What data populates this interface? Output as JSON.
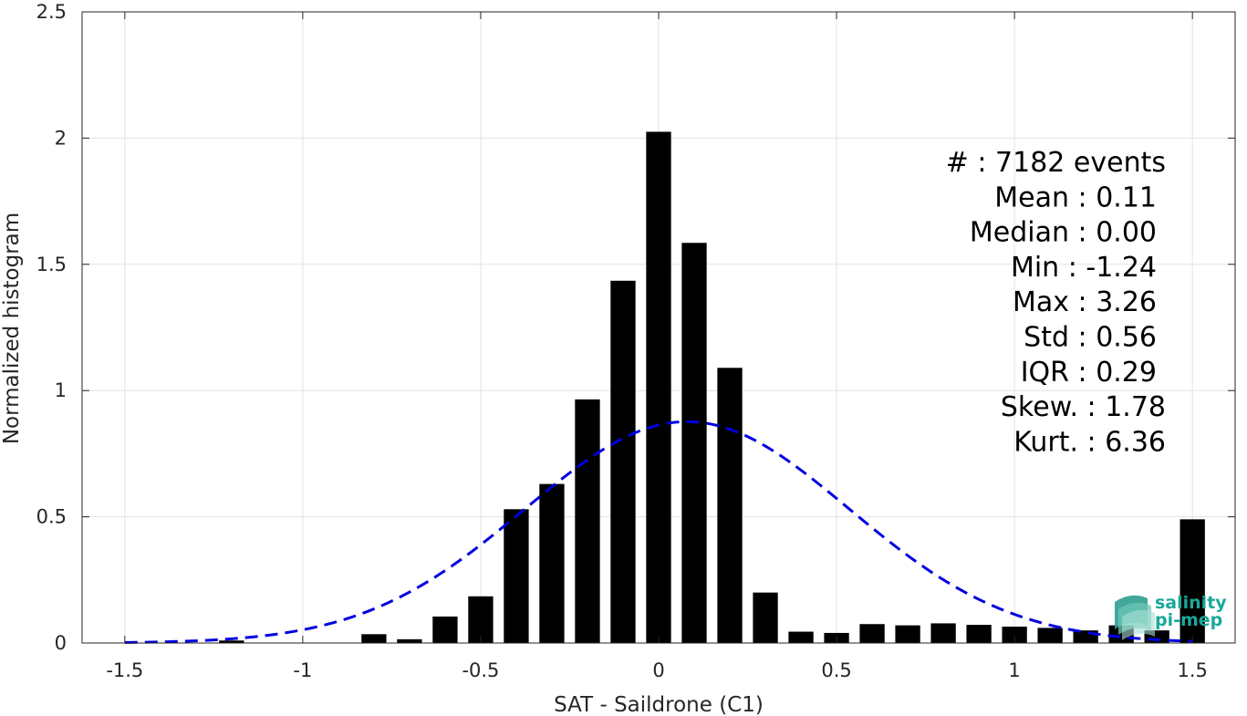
{
  "chart_data": {
    "type": "bar",
    "xlabel": "SAT - Saildrone (C1)",
    "ylabel": "Normalized histogram",
    "xlim": [
      -1.62,
      1.62
    ],
    "ylim": [
      0,
      2.5
    ],
    "x_ticks": [
      -1.5,
      -1,
      -0.5,
      0,
      0.5,
      1,
      1.5
    ],
    "x_tick_labels": [
      "-1.5",
      "-1",
      "-0.5",
      "0",
      "0.5",
      "1",
      "1.5"
    ],
    "y_ticks": [
      0,
      0.5,
      1,
      1.5,
      2,
      2.5
    ],
    "y_tick_labels": [
      "0",
      "0.5",
      "1",
      "1.5",
      "2",
      "2.5"
    ],
    "grid": true,
    "bar_width": 0.07,
    "bars": {
      "x": [
        -1.2,
        -0.8,
        -0.7,
        -0.6,
        -0.5,
        -0.4,
        -0.3,
        -0.2,
        -0.1,
        0.0,
        0.1,
        0.2,
        0.3,
        0.4,
        0.5,
        0.6,
        0.7,
        0.8,
        0.9,
        1.0,
        1.1,
        1.2,
        1.3,
        1.4,
        1.5
      ],
      "values": [
        0.01,
        0.035,
        0.015,
        0.105,
        0.185,
        0.53,
        0.63,
        0.965,
        1.435,
        2.025,
        1.585,
        1.09,
        0.2,
        0.045,
        0.04,
        0.075,
        0.07,
        0.078,
        0.072,
        0.065,
        0.06,
        0.05,
        0.07,
        0.05,
        0.49
      ],
      "color": "#000000"
    },
    "fit_curve": {
      "style": "dashed",
      "color": "#0000e0",
      "mean": 0.08,
      "std": 0.455,
      "x_range": [
        -1.5,
        1.5
      ]
    },
    "annotations": [
      "#  : 7182 events",
      "Mean : 0.11",
      "Median : 0.00",
      "Min : -1.24",
      "Max : 3.26",
      "Std : 0.56",
      "IQR : 0.29",
      "Skew. : 1.78",
      "Kurt. : 6.36"
    ]
  },
  "logo": {
    "line1": "salinity",
    "line2": "pi-mep",
    "color": "#1aa89a"
  }
}
